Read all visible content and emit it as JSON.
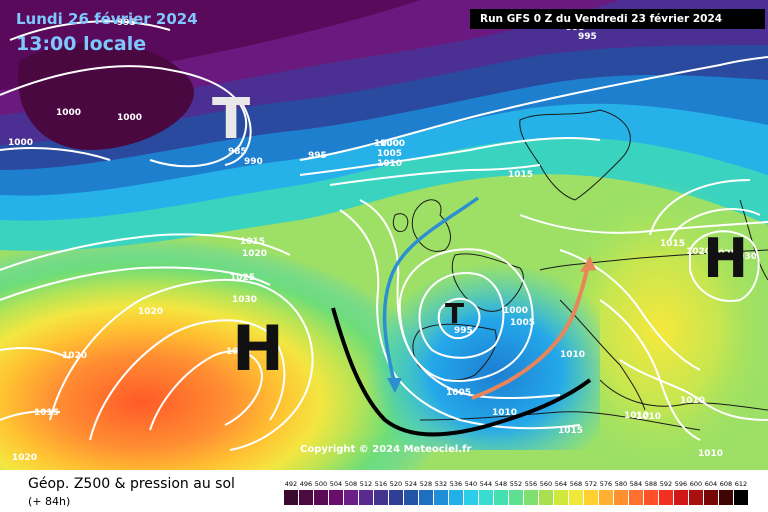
{
  "header": {
    "date_text": "Lundi 26 février 2024",
    "time_text": "13:00 locale",
    "run_text": "Run GFS 0 Z du Vendredi 23 février 2024"
  },
  "map": {
    "pressure_labels": [
      "995",
      "995",
      "995",
      "1000",
      "1000",
      "1000",
      "1000",
      "985",
      "990",
      "995",
      "1000",
      "1005",
      "1010",
      "1015",
      "1015",
      "1020",
      "1025",
      "1030",
      "1035",
      "1020",
      "1020",
      "1015",
      "1020",
      "995",
      "1000",
      "1005",
      "1005",
      "1010",
      "1010",
      "1015",
      "1010",
      "1015",
      "1020",
      "1025",
      "1030",
      "1010",
      "1010",
      "1010"
    ],
    "centers": [
      {
        "type": "low",
        "letter": "T"
      },
      {
        "type": "low",
        "letter": "T"
      },
      {
        "type": "high",
        "letter": "H"
      },
      {
        "type": "high",
        "letter": "H"
      }
    ],
    "copyright": "Copyright © 2024 Meteociel.fr",
    "colors": {
      "arrow_blue": "#2d8fd0",
      "arrow_orange": "#e8855a",
      "trough_line": "#000000",
      "isobar": "#ffffff"
    }
  },
  "footer": {
    "title": "Géop. Z500 & pression au sol",
    "subtitle": "(+ 84h)"
  },
  "legend": {
    "values": [
      "492",
      "496",
      "500",
      "504",
      "508",
      "512",
      "516",
      "520",
      "524",
      "528",
      "532",
      "536",
      "540",
      "544",
      "548",
      "552",
      "556",
      "560",
      "564",
      "568",
      "572",
      "576",
      "580",
      "584",
      "588",
      "592",
      "596",
      "600",
      "604",
      "608",
      "612"
    ],
    "colors": [
      "#3a0b2e",
      "#4b0a40",
      "#5c0a55",
      "#6a0d6d",
      "#6b1e86",
      "#5a2a8f",
      "#44338f",
      "#2f3f95",
      "#2255a8",
      "#1f6fc0",
      "#1f8fd8",
      "#22b0e8",
      "#2ccde8",
      "#38dcd0",
      "#45e0b0",
      "#5ee090",
      "#7fe070",
      "#a8e050",
      "#d0e83e",
      "#f0e838",
      "#ffd030",
      "#ffb030",
      "#ff9030",
      "#ff7030",
      "#ff5028",
      "#f03020",
      "#d01818",
      "#a81010",
      "#780808",
      "#400404",
      "#000000"
    ]
  }
}
